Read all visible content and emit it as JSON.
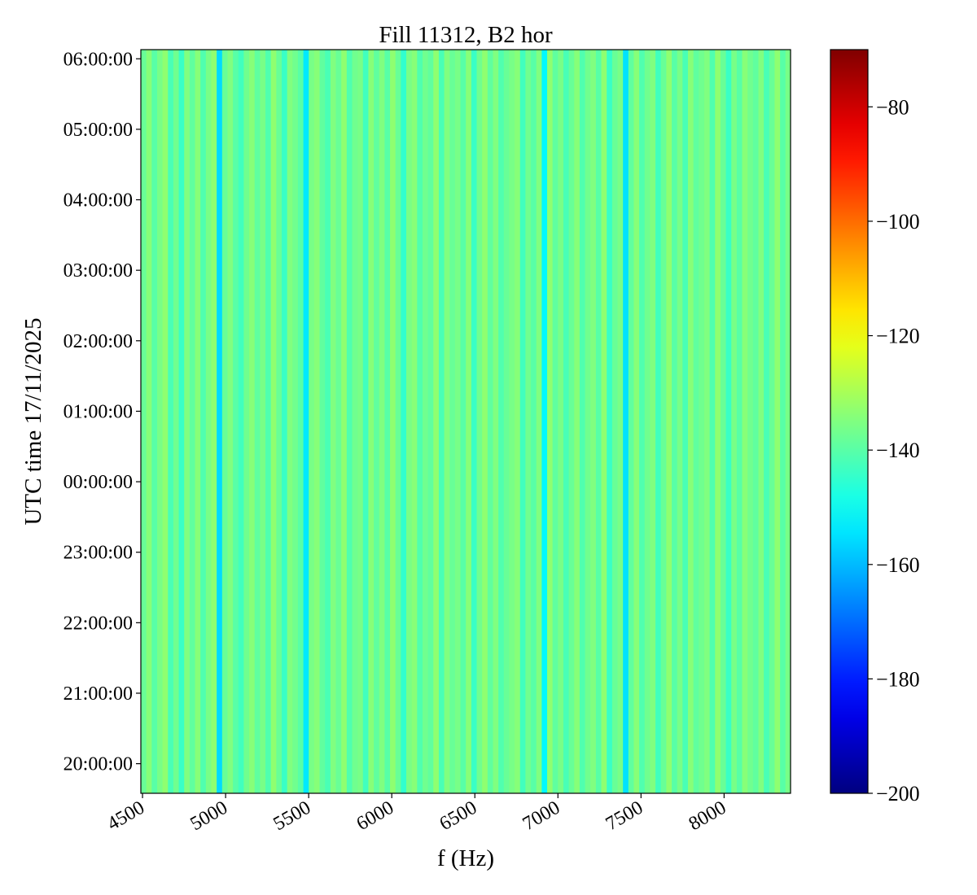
{
  "chart_data": {
    "type": "heatmap",
    "title": "Fill 11312, B2 hor",
    "xlabel": "f (Hz)",
    "ylabel": "UTC time 17/11/2025",
    "xlim": [
      4490,
      8400
    ],
    "ylim_hours": [
      -4.42,
      6.13
    ],
    "x_ticks": [
      4500,
      5000,
      5500,
      6000,
      6500,
      7000,
      7500,
      8000
    ],
    "x_tick_labels": [
      "4500",
      "5000",
      "5500",
      "6000",
      "6500",
      "7000",
      "7500",
      "8000"
    ],
    "y_tick_hours": [
      -4,
      -3,
      -2,
      -1,
      0,
      1,
      2,
      3,
      4,
      5,
      6
    ],
    "y_tick_labels": [
      "20:00:00",
      "21:00:00",
      "22:00:00",
      "23:00:00",
      "00:00:00",
      "01:00:00",
      "02:00:00",
      "03:00:00",
      "04:00:00",
      "05:00:00",
      "06:00:00"
    ],
    "colormap": "jet",
    "colorbar": {
      "range": [
        -200,
        -70
      ],
      "ticks": [
        -200,
        -180,
        -160,
        -140,
        -120,
        -100,
        -80
      ],
      "tick_labels": [
        "−200",
        "−180",
        "−160",
        "−140",
        "−120",
        "−100",
        "−80"
      ]
    },
    "grid": false,
    "frequency_bin_start": 4490,
    "frequency_bin_width": 32.6,
    "column_values": [
      -138,
      -134,
      -140,
      -136,
      -133,
      -142,
      -137,
      -144,
      -135,
      -139,
      -134,
      -141,
      -136,
      -133,
      -156,
      -138,
      -135,
      -140,
      -143,
      -137,
      -134,
      -139,
      -136,
      -141,
      -133,
      -138,
      -144,
      -135,
      -137,
      -140,
      -154,
      -136,
      -134,
      -139,
      -142,
      -135,
      -138,
      -133,
      -141,
      -137,
      -136,
      -143,
      -134,
      -139,
      -135,
      -140,
      -133,
      -138,
      -145,
      -136,
      -134,
      -141,
      -137,
      -139,
      -133,
      -142,
      -135,
      -138,
      -136,
      -140,
      -134,
      -144,
      -137,
      -133,
      -139,
      -135,
      -141,
      -138,
      -136,
      -134,
      -143,
      -137,
      -140,
      -135,
      -152,
      -133,
      -139,
      -136,
      -142,
      -138,
      -134,
      -141,
      -137,
      -135,
      -140,
      -133,
      -144,
      -138,
      -136,
      -155,
      -139,
      -134,
      -141,
      -137,
      -135,
      -143,
      -138,
      -133,
      -140,
      -136,
      -142,
      -134,
      -139,
      -137,
      -135,
      -141,
      -133,
      -138,
      -144,
      -136,
      -140,
      -134,
      -137,
      -139,
      -135,
      -142,
      -138,
      -133,
      -140,
      -136
    ]
  }
}
